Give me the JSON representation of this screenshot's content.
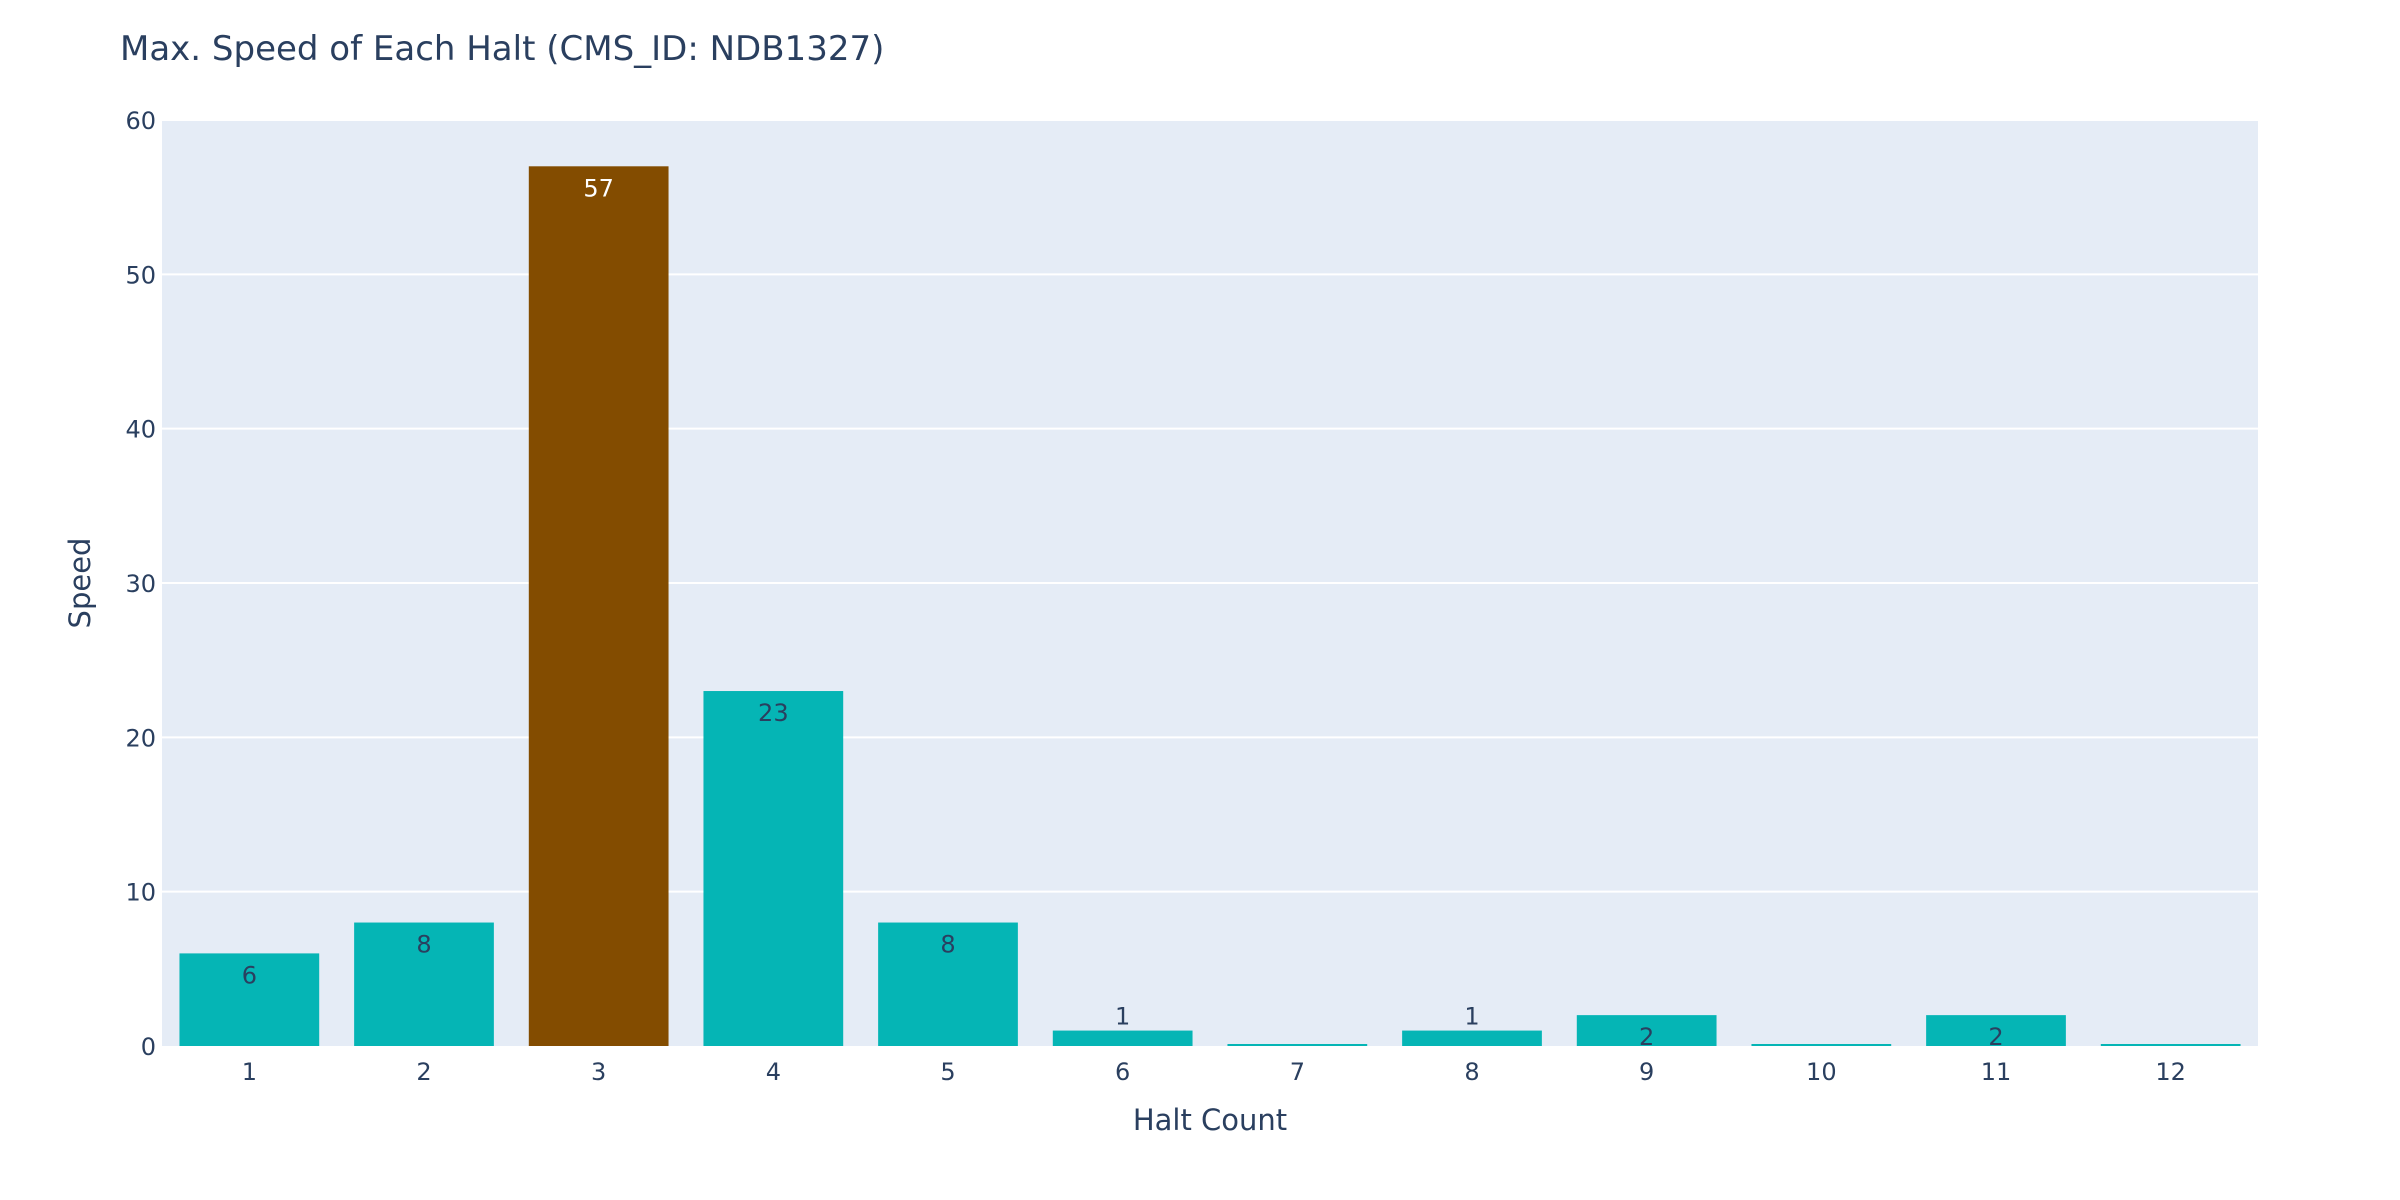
{
  "colors": {
    "plot_background": "#e5ecf6",
    "gridline": "#ffffff",
    "text": "#2a3f5f",
    "bar_default": "#05b5b5",
    "bar_highlight": "#834c00",
    "label_on_default": "#2a3f5f",
    "label_on_highlight": "#ffffff"
  },
  "chart_data": {
    "type": "bar",
    "title": "Max. Speed of Each Halt (CMS_ID: NDB1327)",
    "xlabel": "Halt Count",
    "ylabel": "Speed",
    "categories": [
      "1",
      "2",
      "3",
      "4",
      "5",
      "6",
      "7",
      "8",
      "9",
      "10",
      "11",
      "12"
    ],
    "values": [
      6,
      8,
      57,
      23,
      8,
      1,
      0,
      1,
      2,
      0,
      2,
      0
    ],
    "value_labels": [
      "6",
      "8",
      "57",
      "23",
      "8",
      "1",
      "",
      "1",
      "2",
      "",
      "2",
      ""
    ],
    "highlight_index": 2,
    "ylim": [
      0,
      60
    ],
    "yticks": [
      0,
      10,
      20,
      30,
      40,
      50,
      60
    ],
    "grid": true,
    "legend": "none"
  }
}
